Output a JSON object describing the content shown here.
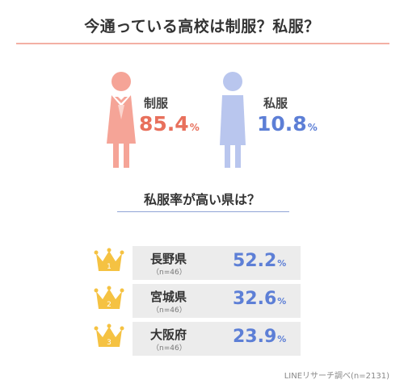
{
  "title": "今通っている高校は制服？私服？",
  "chart_data": {
    "type": "bar",
    "title": "今通っている高校は制服？私服？",
    "categories": [
      "制服",
      "私服"
    ],
    "values": [
      85.4,
      10.8
    ],
    "unit": "%",
    "colors": {
      "uniform": "#e8705c",
      "private": "#5d7fd6",
      "uniform_figure": "#f5a497",
      "private_figure": "#b9c6ee"
    },
    "ranking": {
      "title": "私服率が高い県は？",
      "items": [
        {
          "rank": "1",
          "prefecture": "長野県",
          "n": "（n=46）",
          "value": 52.2
        },
        {
          "rank": "2",
          "prefecture": "宮城県",
          "n": "（n=46）",
          "value": 32.6
        },
        {
          "rank": "3",
          "prefecture": "大阪府",
          "n": "（n=46）",
          "value": 23.9
        }
      ],
      "crown_color": "#f5c242"
    }
  },
  "stats": {
    "uniform_label": "制服",
    "uniform_value": "85.4",
    "private_label": "私服",
    "private_value": "10.8",
    "unit": "%"
  },
  "ranking_title": "私服率が高い県は？",
  "ranks": [
    {
      "rank": "1",
      "name": "長野県",
      "n": "（n=46）",
      "value": "52.2",
      "unit": "%"
    },
    {
      "rank": "2",
      "name": "宮城県",
      "n": "（n=46）",
      "value": "32.6",
      "unit": "%"
    },
    {
      "rank": "3",
      "name": "大阪府",
      "n": "（n=46）",
      "value": "23.9",
      "unit": "%"
    }
  ],
  "source": "LINEリサーチ調べ(n=2131)"
}
